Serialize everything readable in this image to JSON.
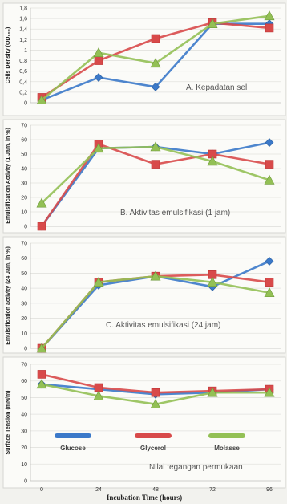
{
  "chart_data": [
    {
      "type": "line",
      "x": [
        0,
        24,
        48,
        72,
        96
      ],
      "ylabel": "Cells Density (OD₆₀₀)",
      "annotation": "A. Kepadatan sel",
      "ylim": [
        0,
        1.8
      ],
      "yticks": [
        "0",
        "0,2",
        "0,4",
        "0,6",
        "0,8",
        "1",
        "1,2",
        "1,4",
        "1,6",
        "1,8"
      ],
      "series": [
        {
          "name": "Glucose",
          "color": "#3b79c9",
          "marker": "diamond",
          "values": [
            0.05,
            0.48,
            0.3,
            1.5,
            1.5
          ]
        },
        {
          "name": "Glycerol",
          "color": "#d84a4a",
          "marker": "square",
          "values": [
            0.1,
            0.8,
            1.22,
            1.52,
            1.42
          ]
        },
        {
          "name": "Molasses",
          "color": "#93c055",
          "marker": "triangle",
          "values": [
            0.05,
            0.95,
            0.75,
            1.5,
            1.65
          ]
        }
      ]
    },
    {
      "type": "line",
      "x": [
        0,
        24,
        48,
        72,
        96
      ],
      "ylabel": "Emulsification Activity (1 Jam, in %)",
      "annotation": "B. Aktivitas emulsifikasi (1 jam)",
      "ylim": [
        0,
        70
      ],
      "yticks": [
        "0",
        "10",
        "20",
        "30",
        "40",
        "50",
        "60",
        "70"
      ],
      "series": [
        {
          "name": "Glucose",
          "color": "#3b79c9",
          "marker": "diamond",
          "values": [
            0,
            54,
            55,
            50,
            58
          ]
        },
        {
          "name": "Glycerol",
          "color": "#d84a4a",
          "marker": "square",
          "values": [
            0,
            57,
            43,
            50,
            43
          ]
        },
        {
          "name": "Molasses",
          "color": "#93c055",
          "marker": "triangle",
          "values": [
            16,
            54,
            55,
            45,
            32
          ]
        }
      ]
    },
    {
      "type": "line",
      "x": [
        0,
        24,
        48,
        72,
        96
      ],
      "ylabel": "Emulsification activity (24 Jam, in %)",
      "annotation": "C. Aktivitas emulsifikasi (24 jam)",
      "ylim": [
        0,
        70
      ],
      "yticks": [
        "0",
        "10",
        "20",
        "30",
        "40",
        "50",
        "60",
        "70"
      ],
      "series": [
        {
          "name": "Glucose",
          "color": "#3b79c9",
          "marker": "diamond",
          "values": [
            0,
            42,
            48,
            41,
            58
          ]
        },
        {
          "name": "Glycerol",
          "color": "#d84a4a",
          "marker": "square",
          "values": [
            0,
            44,
            48,
            49,
            44
          ]
        },
        {
          "name": "Molasses",
          "color": "#93c055",
          "marker": "triangle",
          "values": [
            0,
            44,
            48,
            44,
            37
          ]
        }
      ]
    },
    {
      "type": "line",
      "x": [
        0,
        24,
        48,
        72,
        96
      ],
      "xticks": [
        "0",
        "24",
        "48",
        "72",
        "96"
      ],
      "xlabel": "Incubation Time (hours)",
      "ylabel": "Surface Tension (mN/m)",
      "annotation": "Nilai tegangan permukaan",
      "ylim": [
        0,
        70
      ],
      "yticks": [
        "0",
        "10",
        "20",
        "30",
        "40",
        "50",
        "60",
        "70"
      ],
      "legend": [
        "Glucose",
        "Glycerol",
        "Molasse"
      ],
      "series": [
        {
          "name": "Glucose",
          "color": "#3b79c9",
          "marker": "diamond",
          "values": [
            58,
            55,
            52,
            53,
            55
          ]
        },
        {
          "name": "Glycerol",
          "color": "#d84a4a",
          "marker": "square",
          "values": [
            64,
            56,
            53,
            54,
            55
          ]
        },
        {
          "name": "Molasses",
          "color": "#93c055",
          "marker": "triangle",
          "values": [
            58,
            51,
            46,
            53,
            53
          ]
        }
      ]
    }
  ]
}
